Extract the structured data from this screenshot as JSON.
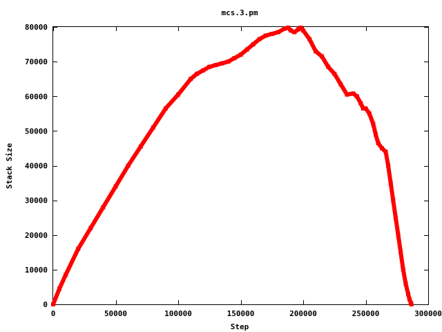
{
  "chart_data": {
    "type": "line",
    "title": "mcs.3.pm",
    "xlabel": "Step",
    "ylabel": "Stack Size",
    "xlim": [
      0,
      300000
    ],
    "ylim": [
      0,
      80000
    ],
    "xticks": [
      0,
      50000,
      100000,
      150000,
      200000,
      250000,
      300000
    ],
    "yticks": [
      0,
      10000,
      20000,
      30000,
      40000,
      50000,
      60000,
      70000,
      80000
    ],
    "xtick_labels": [
      "0",
      "50000",
      "100000",
      "150000",
      "200000",
      "250000",
      "300000"
    ],
    "ytick_labels": [
      "0",
      "10000",
      "20000",
      "30000",
      "40000",
      "50000",
      "60000",
      "70000",
      "80000"
    ],
    "grid": false,
    "legend": "none",
    "series": [
      {
        "color": "#ff0000",
        "x": [
          0,
          5000,
          10000,
          20000,
          30000,
          40000,
          50000,
          60000,
          70000,
          80000,
          90000,
          100000,
          110000,
          115000,
          120000,
          125000,
          130000,
          135000,
          140000,
          145000,
          150000,
          155000,
          160000,
          165000,
          170000,
          175000,
          180000,
          185000,
          188000,
          190000,
          193000,
          196000,
          198000,
          200000,
          205000,
          210000,
          215000,
          220000,
          225000,
          230000,
          235000,
          240000,
          243000,
          246000,
          248000,
          250000,
          253000,
          256000,
          258000,
          260000,
          263000,
          266000,
          268000,
          270000,
          272000,
          274000,
          276000,
          278000,
          280000,
          282000,
          284000,
          285000,
          286000,
          286500
        ],
        "y": [
          0,
          4500,
          8500,
          16000,
          22000,
          28000,
          34000,
          40000,
          45500,
          51000,
          56500,
          60500,
          65000,
          66500,
          67500,
          68500,
          69000,
          69500,
          70000,
          71000,
          72000,
          73500,
          75000,
          76500,
          77500,
          78000,
          78500,
          79500,
          79800,
          79000,
          78500,
          79300,
          79800,
          79000,
          76500,
          73000,
          71500,
          68500,
          66500,
          63500,
          60500,
          60800,
          60000,
          58000,
          56500,
          56500,
          55000,
          52000,
          49000,
          46500,
          45000,
          44000,
          40000,
          35000,
          30000,
          25000,
          20000,
          15000,
          10000,
          6000,
          3000,
          1500,
          500,
          0
        ]
      }
    ]
  }
}
